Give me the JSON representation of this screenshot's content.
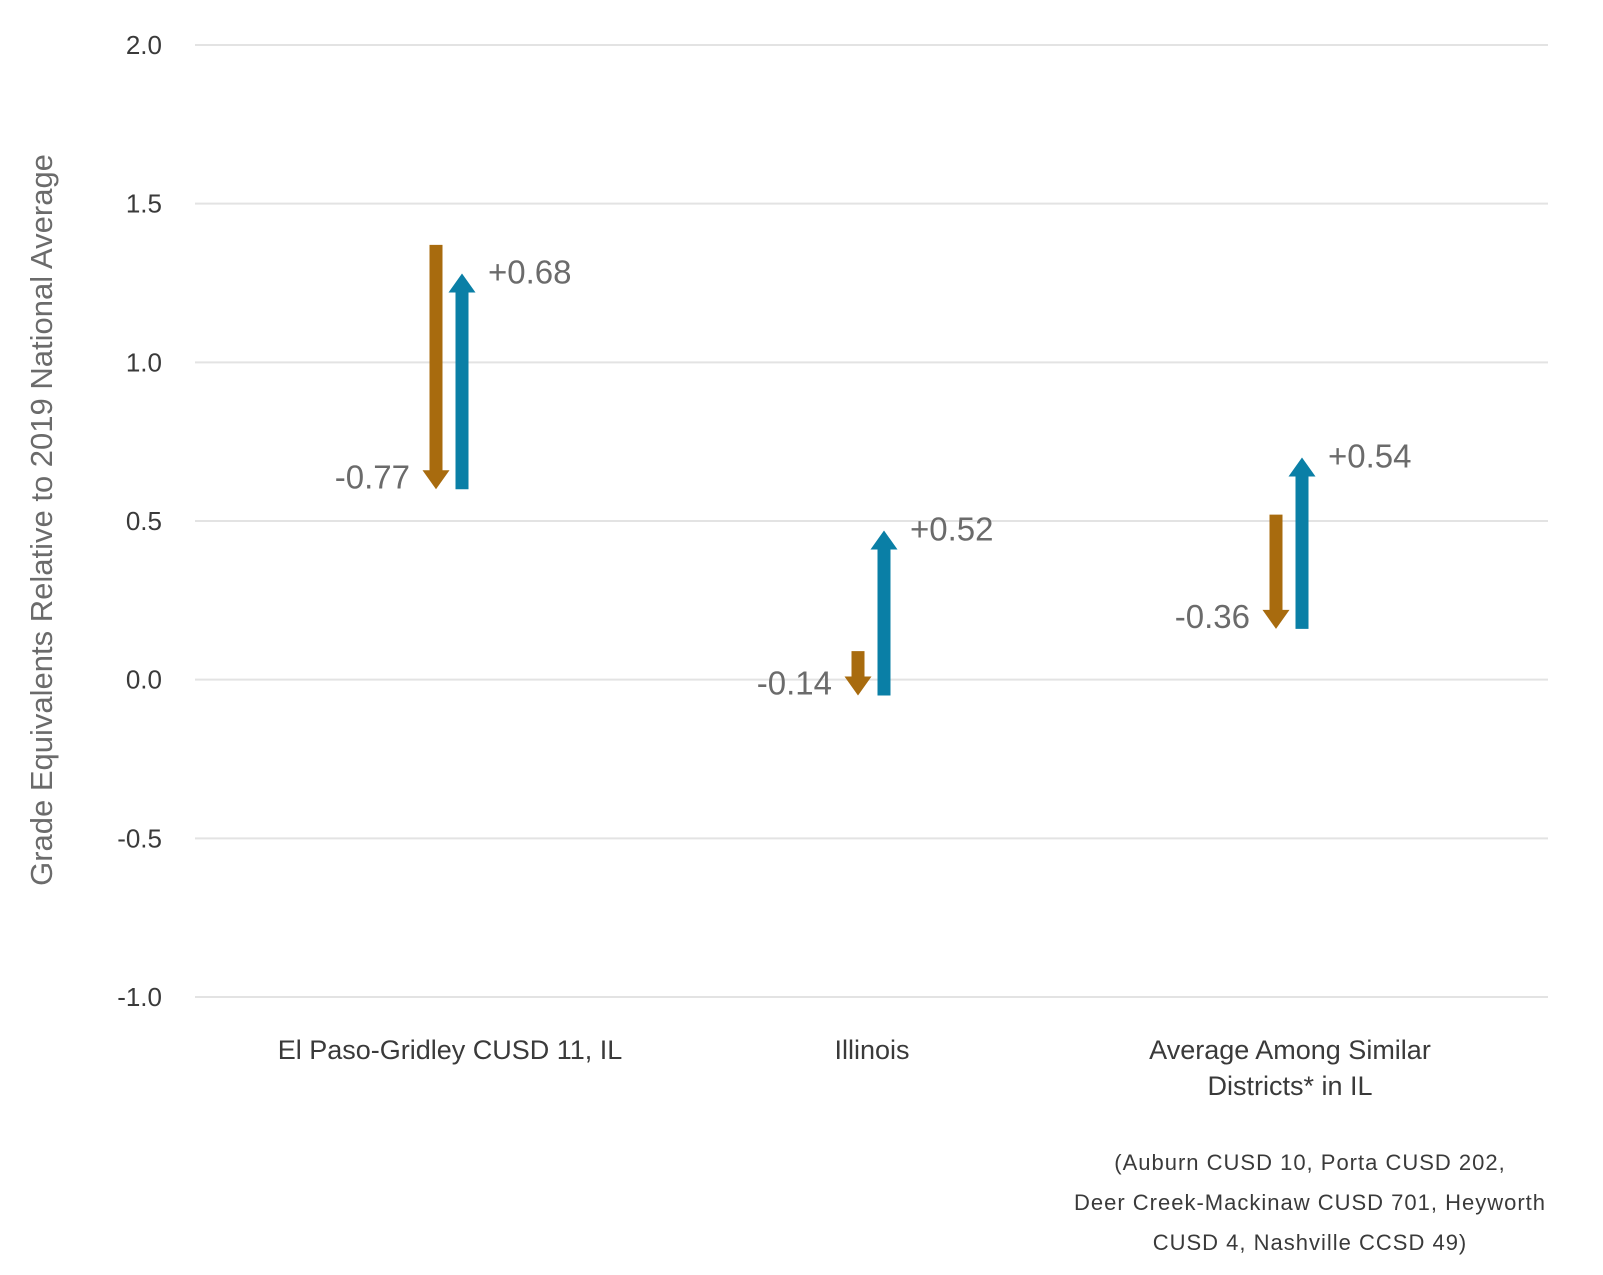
{
  "chart_data": {
    "type": "arrow",
    "title": "",
    "ylabel": "Grade Equivalents Relative to 2019 National Average",
    "xlabel": "",
    "ylim": [
      -1.0,
      2.0
    ],
    "yticks": [
      "2.0",
      "1.5",
      "1.0",
      "0.5",
      "0.0",
      "-0.5",
      "-1.0"
    ],
    "grid": true,
    "categories": [
      {
        "name_lines": [
          "El Paso-Gridley CUSD 11, IL"
        ],
        "decline": {
          "from": 1.37,
          "to": 0.6,
          "label": "-0.77"
        },
        "recovery": {
          "from": 0.6,
          "to": 1.28,
          "label": "+0.68"
        }
      },
      {
        "name_lines": [
          "Illinois"
        ],
        "decline": {
          "from": 0.09,
          "to": -0.05,
          "label": "-0.14"
        },
        "recovery": {
          "from": -0.05,
          "to": 0.47,
          "label": "+0.52"
        }
      },
      {
        "name_lines": [
          "Average Among Similar",
          "Districts* in IL"
        ],
        "decline": {
          "from": 0.52,
          "to": 0.16,
          "label": "-0.36"
        },
        "recovery": {
          "from": 0.16,
          "to": 0.7,
          "label": "+0.54"
        }
      }
    ],
    "colors": {
      "decline": "#a86b0e",
      "recovery": "#0a7fa6",
      "grid": "#e3e3e3"
    },
    "footnote": [
      "(Auburn CUSD 10, Porta CUSD 202,",
      "Deer Creek-Mackinaw CUSD 701, Heyworth",
      "CUSD 4, Nashville CCSD 49)"
    ]
  }
}
